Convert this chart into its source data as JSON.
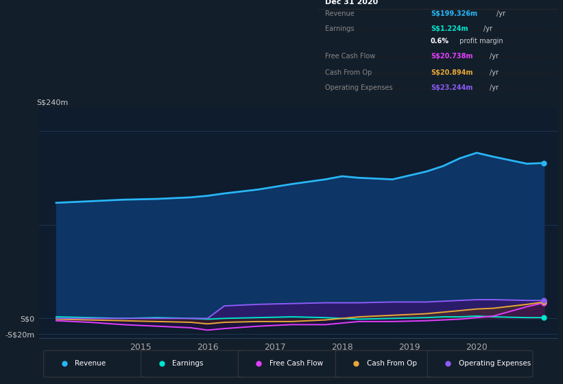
{
  "background_color": "#131e2b",
  "plot_bg_color": "#0e1c2e",
  "years": [
    2013.75,
    2014.25,
    2014.75,
    2015.25,
    2015.75,
    2016.0,
    2016.25,
    2016.75,
    2017.25,
    2017.75,
    2018.0,
    2018.25,
    2018.75,
    2019.25,
    2019.5,
    2019.75,
    2020.0,
    2020.25,
    2020.75,
    2021.0
  ],
  "revenue": [
    148,
    150,
    152,
    153,
    155,
    157,
    160,
    165,
    172,
    178,
    182,
    180,
    178,
    188,
    195,
    205,
    212,
    207,
    198,
    199
  ],
  "earnings": [
    2,
    1,
    0,
    1,
    0,
    -1,
    0,
    1,
    2,
    1,
    0,
    -1,
    0,
    1,
    2,
    2,
    3,
    2,
    1,
    1
  ],
  "free_cash_flow": [
    -3,
    -5,
    -8,
    -10,
    -12,
    -15,
    -13,
    -10,
    -8,
    -8,
    -6,
    -4,
    -4,
    -3,
    -2,
    -1,
    1,
    3,
    15,
    20
  ],
  "cash_from_op": [
    -1,
    -2,
    -3,
    -4,
    -5,
    -7,
    -5,
    -4,
    -4,
    -2,
    0,
    2,
    4,
    6,
    8,
    10,
    12,
    13,
    18,
    21
  ],
  "operating_expenses": [
    0,
    0,
    0,
    0,
    0,
    0,
    16,
    18,
    19,
    20,
    20,
    20,
    21,
    21,
    22,
    23,
    24,
    24,
    23,
    23
  ],
  "revenue_color": "#29b6f6",
  "earnings_color": "#00e5cc",
  "free_cash_flow_color": "#e040fb",
  "cash_from_op_color": "#e8a838",
  "operating_expenses_color": "#8b5cf6",
  "ylim": [
    -25,
    270
  ],
  "xlim_min": 2013.5,
  "xlim_max": 2021.2,
  "xticks": [
    2015,
    2016,
    2017,
    2018,
    2019,
    2020
  ],
  "info_box_title": "Dec 31 2020",
  "info_rows": [
    {
      "label": "Revenue",
      "value": "S$199.326m",
      "unit": "/yr",
      "value_color": "#29b6f6",
      "label_color": "#888888"
    },
    {
      "label": "Earnings",
      "value": "S$1.224m",
      "unit": "/yr",
      "value_color": "#00e5cc",
      "label_color": "#888888"
    },
    {
      "label": "",
      "value": "0.6%",
      "unit": " profit margin",
      "value_color": "#ffffff",
      "label_color": "#888888"
    },
    {
      "label": "Free Cash Flow",
      "value": "S$20.738m",
      "unit": "/yr",
      "value_color": "#e040fb",
      "label_color": "#888888"
    },
    {
      "label": "Cash From Op",
      "value": "S$20.894m",
      "unit": "/yr",
      "value_color": "#e8a838",
      "label_color": "#888888"
    },
    {
      "label": "Operating Expenses",
      "value": "S$23.244m",
      "unit": "/yr",
      "value_color": "#8b5cf6",
      "label_color": "#888888"
    }
  ],
  "legend_items": [
    {
      "label": "Revenue",
      "color": "#29b6f6"
    },
    {
      "label": "Earnings",
      "color": "#00e5cc"
    },
    {
      "label": "Free Cash Flow",
      "color": "#e040fb"
    },
    {
      "label": "Cash From Op",
      "color": "#e8a838"
    },
    {
      "label": "Operating Expenses",
      "color": "#8b5cf6"
    }
  ]
}
